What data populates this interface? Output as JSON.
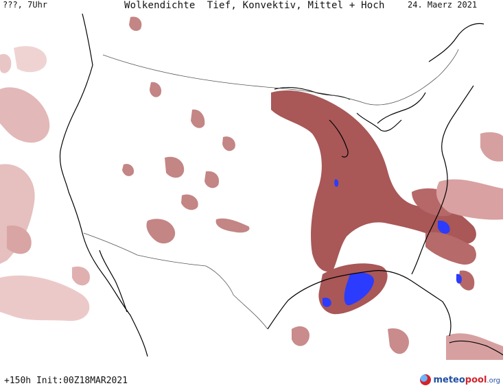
{
  "header": {
    "valid_time": "???, 7Uhr",
    "title": "Wolkendichte  Tief, Konvektiv, Mittel + Hoch",
    "date": "24. Maerz 2021"
  },
  "footer": {
    "lead_time": "+150h",
    "init_label": "Init:00Z18MAR2021"
  },
  "logo": {
    "part_a": "meteo",
    "part_b": "pool",
    "part_c": ".org"
  },
  "colors": {
    "cloud_light": "#e8c4c4",
    "cloud_medium": "#c98b8b",
    "cloud_dense": "#a85555",
    "convective": "#2b3cff",
    "coastline": "#000000",
    "border": "#555555"
  }
}
